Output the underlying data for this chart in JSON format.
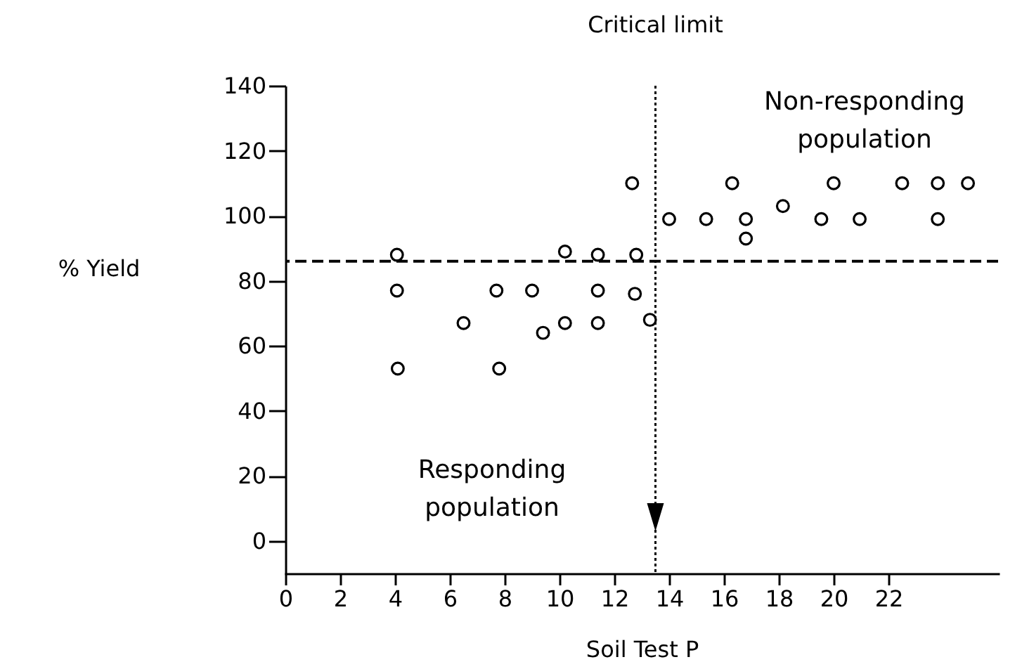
{
  "chart_data": {
    "type": "scatter",
    "xlabel": "Soil Test P",
    "ylabel": "% Yield",
    "x": [
      4.07,
      4.07,
      4.1,
      6.5,
      7.7,
      7.8,
      9.0,
      9.4,
      10.2,
      10.2,
      11.4,
      11.4,
      11.4,
      12.65,
      12.8,
      12.75,
      13.3,
      14.0,
      15.35,
      16.3,
      16.8,
      16.8,
      18.15,
      19.55,
      20.0,
      20.95,
      22.5,
      23.8,
      23.8,
      24.9
    ],
    "series": [
      {
        "color": "#000000",
        "values": [
          88,
          77,
          53,
          67,
          77,
          53,
          77,
          64,
          89,
          67,
          88,
          77,
          67,
          110,
          88,
          76,
          68,
          99,
          99,
          110,
          99,
          93,
          103,
          99,
          110,
          99,
          110,
          110,
          99,
          110
        ]
      }
    ],
    "xlim": [
      0,
      26
    ],
    "xticks": [
      0,
      2,
      4,
      6,
      8,
      10,
      12,
      14,
      16,
      18,
      20,
      22
    ],
    "ylim": [
      -10,
      140
    ],
    "yticks": [
      0,
      20,
      40,
      60,
      80,
      100,
      120,
      140
    ],
    "grid": false,
    "marker": "circle",
    "ref_lines": [
      {
        "axis": "y",
        "value": 86,
        "line_style": "dashed",
        "color": "#000000"
      },
      {
        "axis": "x",
        "value": 13.5,
        "label": "Critical limit",
        "line_style": "dotted",
        "color": "#000000"
      }
    ],
    "annotations": [
      "Responding\npopulation",
      "Non-responding\npopulation"
    ]
  }
}
